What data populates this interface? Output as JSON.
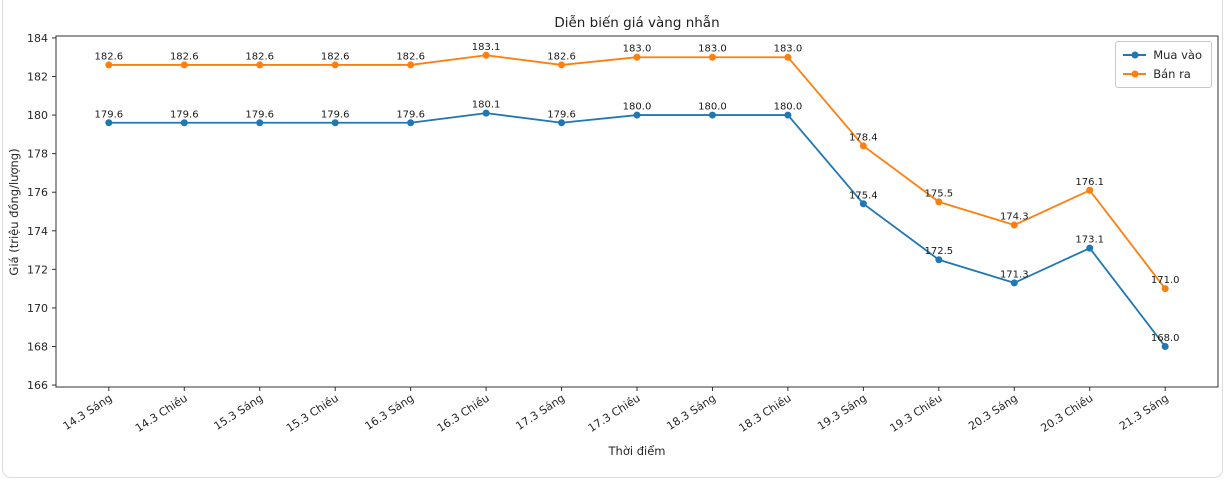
{
  "chart_data": {
    "type": "line",
    "title": "Diễn biến giá vàng nhẫn",
    "xlabel": "Thời điểm",
    "ylabel": "Giá (triệu đồng/lượng)",
    "categories": [
      "14.3 Sáng",
      "14.3 Chiều",
      "15.3 Sáng",
      "15.3 Chiều",
      "16.3 Sáng",
      "16.3 Chiều",
      "17.3 Sáng",
      "17.3 Chiều",
      "18.3 Sáng",
      "18.3 Chiều",
      "19.3 Sáng",
      "19.3 Chiều",
      "20.3 Sáng",
      "20.3 Chiều",
      "21.3 Sáng"
    ],
    "series": [
      {
        "name": "Mua vào",
        "color": "#1f77b4",
        "values": [
          179.6,
          179.6,
          179.6,
          179.6,
          179.6,
          180.1,
          179.6,
          180.0,
          180.0,
          180.0,
          175.4,
          172.5,
          171.3,
          173.1,
          168.0
        ]
      },
      {
        "name": "Bán ra",
        "color": "#ff7f0e",
        "values": [
          182.6,
          182.6,
          182.6,
          182.6,
          182.6,
          183.1,
          182.6,
          183.0,
          183.0,
          183.0,
          178.4,
          175.5,
          174.3,
          176.1,
          171.0
        ]
      }
    ],
    "yticks": [
      166,
      168,
      170,
      172,
      174,
      176,
      178,
      180,
      182,
      184
    ],
    "ylim": [
      165.9,
      184.1
    ],
    "grid": false,
    "legend_position": "upper right",
    "marker": "circle",
    "point_labels": true,
    "value_decimals": 1
  }
}
